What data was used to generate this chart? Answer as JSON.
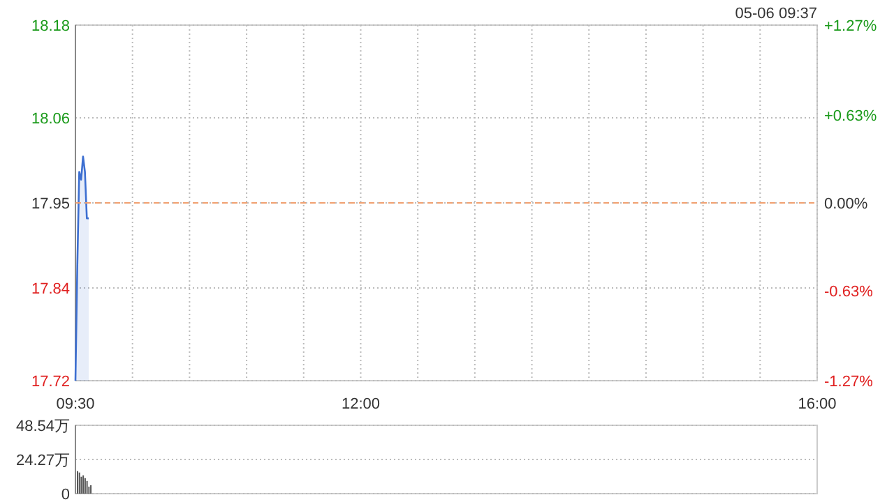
{
  "chart_data": [
    {
      "type": "area",
      "x": [
        9.5,
        9.5167,
        9.5333,
        9.55,
        9.5667,
        9.5833,
        9.6,
        9.6167
      ],
      "values": [
        17.72,
        17.87,
        17.99,
        17.98,
        18.01,
        17.99,
        17.93,
        17.93
      ],
      "color": "#3d6fd1",
      "xlim": [
        9.5,
        16
      ],
      "xticks": [
        {
          "value": 9.5,
          "label": "09:30"
        },
        {
          "value": 10,
          "label": null
        },
        {
          "value": 10.5,
          "label": null
        },
        {
          "value": 11,
          "label": null
        },
        {
          "value": 11.5,
          "label": null
        },
        {
          "value": 12,
          "label": "12:00"
        },
        {
          "value": 12.5,
          "label": null
        },
        {
          "value": 13,
          "label": null
        },
        {
          "value": 13.5,
          "label": null
        },
        {
          "value": 14,
          "label": null
        },
        {
          "value": 14.5,
          "label": null
        },
        {
          "value": 15,
          "label": null
        },
        {
          "value": 15.5,
          "label": null
        },
        {
          "value": 16,
          "label": "16:00"
        }
      ],
      "ylim": [
        17.72,
        18.18
      ],
      "yticks": [
        17.72,
        17.84,
        17.95,
        18.06,
        18.18
      ],
      "y2lim": [
        -1.27,
        1.27
      ],
      "y2ticks": [
        {
          "value": -1.27,
          "label": "-1.27%"
        },
        {
          "value": -0.63,
          "label": "-0.63%"
        },
        {
          "value": 0,
          "label": "0.00%"
        },
        {
          "value": 0.63,
          "label": "+0.63%"
        },
        {
          "value": 1.27,
          "label": "+1.27%"
        }
      ],
      "ref_lines": [
        {
          "axis": "y",
          "value": 17.95,
          "color": "#f0a070",
          "line_style": "dashed"
        }
      ],
      "grid": true,
      "annotations": [
        "05-06 09:37"
      ]
    },
    {
      "type": "bar",
      "x": [
        9.5,
        9.5167,
        9.5333,
        9.55,
        9.5667,
        9.5833,
        9.6,
        9.6167
      ],
      "values": [
        16,
        15,
        12,
        13,
        11,
        9,
        5,
        6
      ],
      "color": "#555555",
      "xlim": [
        9.5,
        16
      ],
      "ylim": [
        0,
        48.54
      ],
      "yticks": [
        0,
        {
          "value": 24.27,
          "label": "24.27万"
        },
        {
          "value": 48.54,
          "label": "48.54万"
        }
      ],
      "grid": "y",
      "tick_labels": "y"
    }
  ]
}
